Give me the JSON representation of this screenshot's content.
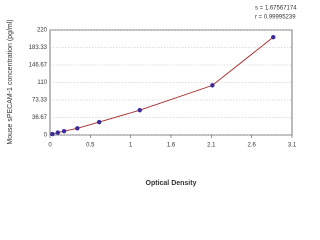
{
  "chart_data": {
    "type": "scatter",
    "y_label": "Mouse sPECAM-1 concentration (pg/ml)",
    "x_label": "Optical Density",
    "annotations": [
      "s = 1.67567174",
      "r = 0.99995239"
    ],
    "x": [
      0.03,
      0.1,
      0.18,
      0.35,
      0.63,
      1.15,
      2.08,
      2.86
    ],
    "series": [
      {
        "color": "#3b2b9b",
        "values": [
          2,
          5,
          8,
          14,
          27,
          52,
          104,
          205
        ]
      }
    ],
    "line_color": "#a52a2a",
    "xlim": [
      0,
      3.1
    ],
    "xticks": [
      0,
      {
        "value": 0.517,
        "label": "0.5"
      },
      {
        "value": 1.033,
        "label": "1"
      },
      {
        "value": 1.55,
        "label": "1.6"
      },
      {
        "value": 2.067,
        "label": "2.1"
      },
      {
        "value": 2.583,
        "label": "2.6"
      },
      3.1
    ],
    "ylim": [
      0,
      220
    ],
    "yticks": [
      0,
      36.67,
      73.33,
      110,
      146.67,
      183.33,
      220
    ],
    "grid": true
  }
}
